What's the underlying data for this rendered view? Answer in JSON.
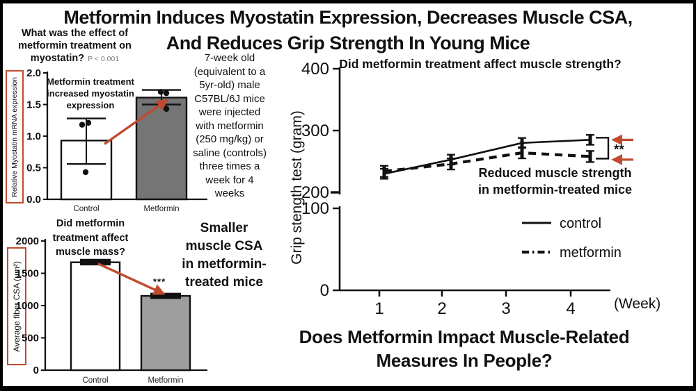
{
  "title": {
    "line1": "Metformin Induces Myostatin Expression, Decreases Muscle CSA,",
    "line2": "And Reduces Grip Strength In Young Mice"
  },
  "methods_text": "7-week old\n(equivalent to a\n5yr-old) male\nC57BL/6J mice\nwere injected\nwith metformin\n(250 mg/kg) or\nsaline (controls)\nthree times a\nweek for 4\nweeks",
  "bottom_question": "Does Metformin Impact Muscle-Related\nMeasures In People?",
  "colors": {
    "accent_red": "#c14a30",
    "bar_dark_gray": "#757575",
    "bar_light_gray": "#9e9e9e",
    "pvalue_gray": "#7d7d7d"
  },
  "chart_data": [
    {
      "id": "myostatin",
      "type": "bar",
      "question": "What was the effect of\nmetformin treatment on\nmyostatin?",
      "p_value": "P < 0.001",
      "annotation": "Metformin treatment\nincreased myostatin\nexpression",
      "ylabel": "Relative Myostatin mRNA expression",
      "ylim": [
        0,
        2.0
      ],
      "y_ticks": [
        0,
        0.5,
        1.0,
        1.5,
        2.0
      ],
      "y_tick_labels": [
        "0.0",
        "0.5",
        "1.0",
        "1.5",
        "2.0"
      ],
      "categories": [
        "Control",
        "Metformin"
      ],
      "values": [
        0.93,
        1.61
      ],
      "errors_low": [
        0.56,
        1.5
      ],
      "errors_high": [
        1.28,
        1.73
      ],
      "scatter": [
        [
          1.18,
          1.21,
          0.43
        ],
        [
          1.7,
          1.68,
          1.48,
          1.43
        ]
      ],
      "bar_fills": [
        "#ffffff",
        "#757575"
      ]
    },
    {
      "id": "csa",
      "type": "bar",
      "question": "Did metformin\ntreatment affect\nmuscle mass?",
      "significance": "***",
      "annotation": "Smaller\nmuscle CSA\nin metformin-\ntreated mice",
      "ylabel": "Average fiber CSA (µm²)",
      "ylim": [
        0,
        2000
      ],
      "y_ticks": [
        0,
        500,
        1000,
        1500,
        2000
      ],
      "y_tick_labels": [
        "0",
        "500",
        "1000",
        "1500",
        "2000"
      ],
      "categories": [
        "Control",
        "Metformin"
      ],
      "values": [
        1670,
        1150
      ],
      "errors_low": [
        1645,
        1125
      ],
      "errors_high": [
        1700,
        1175
      ],
      "scatter": null,
      "bar_fills": [
        "#ffffff",
        "#9e9e9e"
      ]
    },
    {
      "id": "grip",
      "type": "line",
      "question": "Did metformin treatment affect muscle strength?",
      "annotation": "Reduced muscle strength\nin metformin-treated mice",
      "significance": "**",
      "ylabel": "Grip stength test (gram)",
      "xlabel": "(Week)",
      "x": [
        1,
        2,
        3,
        4
      ],
      "ylim_upper": [
        200,
        400
      ],
      "ylim_lower": [
        0,
        100
      ],
      "axis_break": true,
      "y_ticks_upper": [
        200,
        300,
        400
      ],
      "y_ticks_lower": [
        0,
        100
      ],
      "series": [
        {
          "name": "control",
          "style": "solid",
          "values": [
            230,
            253,
            280,
            285
          ],
          "err": 8
        },
        {
          "name": "metformin",
          "style": "dashdot",
          "values": [
            234,
            246,
            264,
            258
          ],
          "err": 9
        }
      ],
      "legend": [
        "control",
        "metformin"
      ]
    }
  ]
}
